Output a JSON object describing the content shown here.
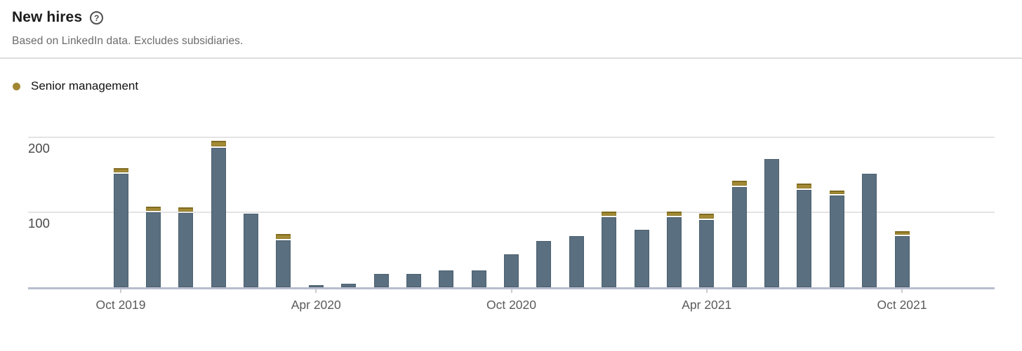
{
  "header": {
    "title": "New hires",
    "help_glyph": "?",
    "subtitle": "Based on LinkedIn data. Excludes subsidiaries."
  },
  "legend": {
    "items": [
      {
        "label": "Senior management",
        "color": "#a28733"
      }
    ]
  },
  "colors": {
    "bar": "#5a6f7f",
    "senior": "#a38a35",
    "senior_border": "#7e6a20",
    "baseline": "#b7bdcd",
    "gridline": "#e4e4e4"
  },
  "chart_data": {
    "type": "bar",
    "stacked": true,
    "title": "New hires",
    "xlabel": "",
    "ylabel": "",
    "ylim": [
      0,
      210
    ],
    "grid": "horizontal",
    "legend_position": "top-left",
    "categories": [
      "Oct 2019",
      "Nov 2019",
      "Dec 2019",
      "Jan 2020",
      "Feb 2020",
      "Mar 2020",
      "Apr 2020",
      "May 2020",
      "Jun 2020",
      "Jul 2020",
      "Aug 2020",
      "Sep 2020",
      "Oct 2020",
      "Nov 2020",
      "Dec 2020",
      "Jan 2021",
      "Feb 2021",
      "Mar 2021",
      "Apr 2021",
      "May 2021",
      "Jun 2021",
      "Jul 2021",
      "Aug 2021",
      "Sep 2021",
      "Oct 2021"
    ],
    "series": [
      {
        "name": "",
        "key": "base",
        "color": "#5a6f7f",
        "values": [
          151,
          100,
          99,
          186,
          98,
          63,
          3,
          5,
          18,
          18,
          22,
          22,
          44,
          62,
          68,
          93,
          77,
          93,
          90,
          134,
          171,
          130,
          122,
          151,
          68
        ]
      },
      {
        "name": "Senior management",
        "key": "senior",
        "color": "#a38a35",
        "values": [
          6,
          6,
          6,
          7,
          0,
          6,
          0,
          0,
          0,
          0,
          0,
          0,
          0,
          0,
          0,
          6,
          0,
          6,
          6,
          6,
          0,
          6,
          5,
          0,
          5
        ]
      }
    ],
    "y_axis": {
      "ticks": [
        {
          "value": 100,
          "label": "100"
        },
        {
          "value": 200,
          "label": "200"
        }
      ]
    },
    "x_axis": {
      "ticks": [
        {
          "index": 0,
          "label": "Oct 2019"
        },
        {
          "index": 6,
          "label": "Apr 2020"
        },
        {
          "index": 12,
          "label": "Oct 2020"
        },
        {
          "index": 18,
          "label": "Apr 2021"
        },
        {
          "index": 24,
          "label": "Oct 2021"
        }
      ]
    }
  }
}
